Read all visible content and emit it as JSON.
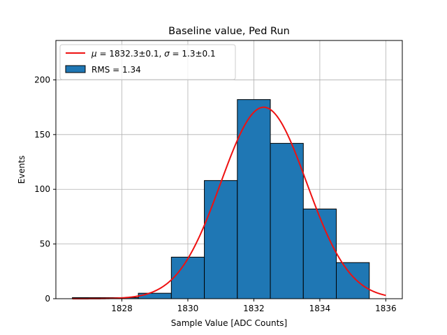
{
  "chart_data": {
    "type": "bar",
    "title": "Baseline value, Ped Run",
    "xlabel": "Sample Value [ADC Counts]",
    "ylabel": "Events",
    "xlim": [
      1826.0,
      1836.5
    ],
    "ylim": [
      0,
      236
    ],
    "grid": true,
    "legend_position": "top-left",
    "bins": [
      {
        "x0": 1826.5,
        "x1": 1828.5,
        "value": 1
      },
      {
        "x0": 1828.5,
        "x1": 1829.5,
        "value": 5
      },
      {
        "x0": 1829.5,
        "x1": 1830.5,
        "value": 38
      },
      {
        "x0": 1830.5,
        "x1": 1831.5,
        "value": 108
      },
      {
        "x0": 1831.5,
        "x1": 1832.5,
        "value": 182
      },
      {
        "x0": 1832.5,
        "x1": 1833.5,
        "value": 142
      },
      {
        "x0": 1833.5,
        "x1": 1834.5,
        "value": 82
      },
      {
        "x0": 1834.5,
        "x1": 1835.5,
        "value": 33
      }
    ],
    "fit": {
      "mu": 1832.3,
      "sigma": 1.3,
      "amplitude": 175,
      "x_range": [
        1826.5,
        1836.0
      ]
    },
    "xticks": [
      {
        "value": 1828,
        "label": "1828"
      },
      {
        "value": 1830,
        "label": "1830"
      },
      {
        "value": 1832,
        "label": "1832"
      },
      {
        "value": 1834,
        "label": "1834"
      },
      {
        "value": 1836,
        "label": "1836"
      }
    ],
    "yticks": [
      {
        "value": 0,
        "label": "0"
      },
      {
        "value": 50,
        "label": "50"
      },
      {
        "value": 100,
        "label": "100"
      },
      {
        "value": 150,
        "label": "150"
      },
      {
        "value": 200,
        "label": "200"
      }
    ],
    "legend": [
      {
        "kind": "line",
        "mu_symbol": "μ",
        "eq1": " = 1832.3±0.1, ",
        "sigma_symbol": "σ",
        "eq2": " = 1.3±0.1"
      },
      {
        "kind": "bar",
        "text": "RMS = 1.34"
      }
    ]
  },
  "colors": {
    "bar_fill": "#1f77b4",
    "bar_edge": "#000000",
    "fit_line": "#ee1111",
    "grid": "#b0b0b0",
    "axis": "#000000"
  }
}
